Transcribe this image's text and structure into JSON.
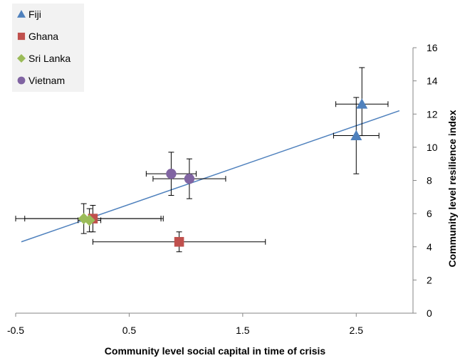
{
  "chart_data": {
    "type": "scatter",
    "xlabel": "Community level social capital in time of crisis",
    "ylabel": "Community level resilience index",
    "xlim": [
      -0.5,
      3.0
    ],
    "ylim": [
      0,
      16
    ],
    "xticks": [
      -0.5,
      0.5,
      1.5,
      2.5
    ],
    "yticks": [
      0,
      2,
      4,
      6,
      8,
      10,
      12,
      14,
      16
    ],
    "xtick_labels": [
      "-0.5",
      "0.5",
      "1.5",
      "2.5"
    ],
    "ytick_labels": [
      "0",
      "2",
      "4",
      "6",
      "8",
      "10",
      "12",
      "14",
      "16"
    ],
    "y_axis_side": "right",
    "grid": false,
    "legend_position": "top-left",
    "series": [
      {
        "name": "Fiji",
        "marker": "triangle",
        "color": "#4f81bd",
        "points": [
          {
            "x": 2.55,
            "y": 12.6,
            "xerr": [
              0.23,
              0.23
            ],
            "yerr": [
              1.9,
              2.2
            ]
          },
          {
            "x": 2.5,
            "y": 10.7,
            "xerr": [
              0.2,
              0.2
            ],
            "yerr": [
              2.3,
              2.3
            ]
          }
        ]
      },
      {
        "name": "Ghana",
        "marker": "square",
        "color": "#c0504d",
        "points": [
          {
            "x": 0.18,
            "y": 5.7,
            "xerr": [
              0.6,
              0.6
            ],
            "yerr": [
              0.8,
              0.8
            ]
          },
          {
            "x": 0.94,
            "y": 4.3,
            "xerr": [
              0.76,
              0.76
            ],
            "yerr": [
              0.6,
              0.6
            ]
          }
        ]
      },
      {
        "name": "Sri Lanka",
        "marker": "diamond",
        "color": "#9bbb59",
        "points": [
          {
            "x": 0.1,
            "y": 5.7,
            "xerr": [
              0.6,
              0.7
            ],
            "yerr": [
              0.9,
              0.9
            ]
          },
          {
            "x": 0.15,
            "y": 5.6,
            "xerr": [
              0.1,
              0.1
            ],
            "yerr": [
              0.7,
              0.7
            ]
          }
        ]
      },
      {
        "name": "Vietnam",
        "marker": "circle",
        "color": "#8064a2",
        "points": [
          {
            "x": 0.87,
            "y": 8.4,
            "xerr": [
              0.22,
              0.22
            ],
            "yerr": [
              1.3,
              1.3
            ]
          },
          {
            "x": 1.03,
            "y": 8.1,
            "xerr": [
              0.32,
              0.32
            ],
            "yerr": [
              1.2,
              1.2
            ]
          }
        ]
      }
    ],
    "trendline": {
      "color": "#4f81bd",
      "x": [
        -0.45,
        2.88
      ],
      "y": [
        4.3,
        12.2
      ]
    }
  }
}
